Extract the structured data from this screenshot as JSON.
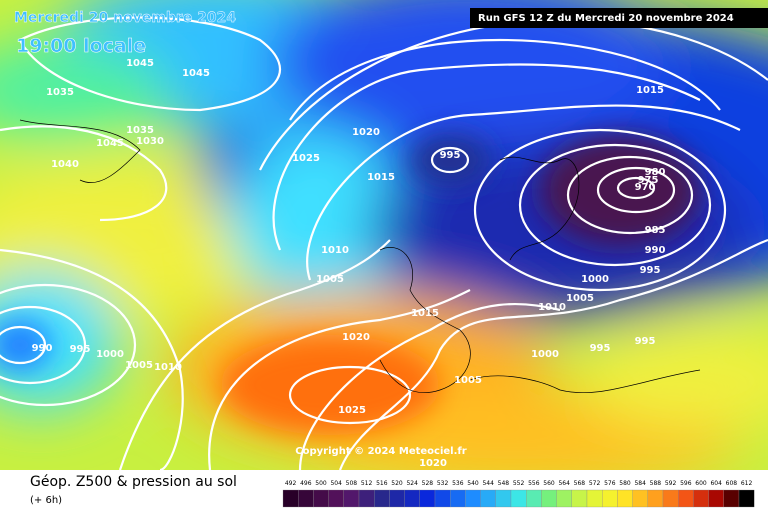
{
  "header": {
    "date": "Mercredi 20 novembre 2024",
    "time": "19:00 locale",
    "run": "Run GFS 12 Z du Mercredi 20 novembre 2024"
  },
  "copyright": "Copyright © 2024 Meteociel.fr",
  "footer": {
    "title": "Géop. Z500 & pression au sol",
    "lead": "(+ 6h)"
  },
  "isobar_labels": [
    "1045",
    "1045",
    "1035",
    "1035",
    "1030",
    "1045",
    "1040",
    "1020",
    "1025",
    "1015",
    "995",
    "1015",
    "980",
    "975",
    "970",
    "985",
    "990",
    "995",
    "1000",
    "1005",
    "1010",
    "1010",
    "1005",
    "1015",
    "1020",
    "995",
    "995",
    "1000",
    "990",
    "995",
    "1000",
    "1005",
    "1010",
    "1005",
    "1025",
    "1020"
  ],
  "legend": {
    "scale": [
      492,
      496,
      500,
      504,
      508,
      512,
      516,
      520,
      524,
      528,
      532,
      536,
      540,
      544,
      548,
      552,
      556,
      560,
      564,
      568,
      572,
      576,
      580,
      584,
      588,
      592,
      596,
      600,
      604,
      608,
      612
    ]
  }
}
